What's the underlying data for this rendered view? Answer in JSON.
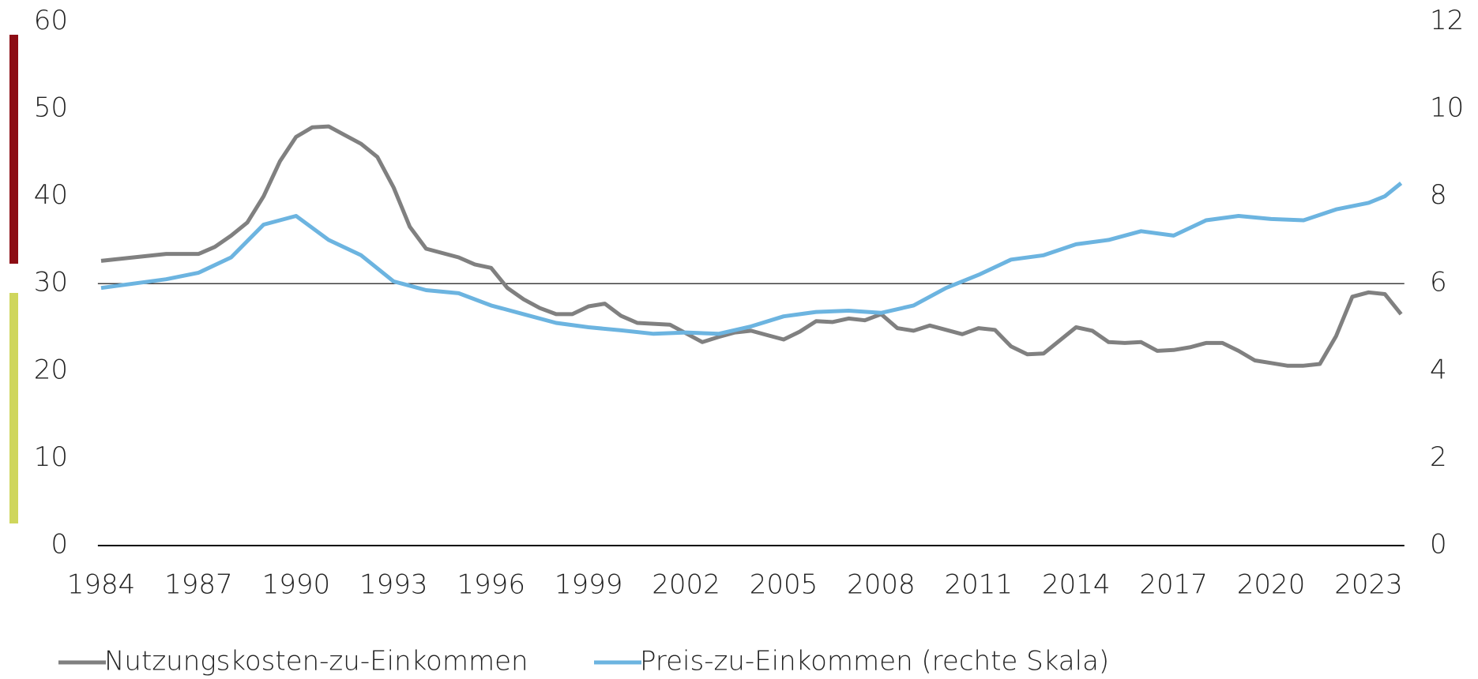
{
  "chart_data": {
    "type": "line",
    "xlim": [
      1983.9,
      2024.1
    ],
    "xticks": [
      1984,
      1987,
      1990,
      1993,
      1996,
      1999,
      2002,
      2005,
      2008,
      2011,
      2014,
      2017,
      2020,
      2023
    ],
    "ylim": [
      0,
      60
    ],
    "yticks": [
      0,
      10,
      20,
      30,
      40,
      50,
      60
    ],
    "y2lim": [
      0,
      12
    ],
    "y2ticks": [
      0,
      2,
      4,
      6,
      8,
      10,
      12
    ],
    "hline": 30,
    "series": [
      {
        "name": "Nutzungskosten-zu-Einkommen",
        "color": "#808080",
        "x": [
          1984,
          1985,
          1986,
          1987,
          1987.5,
          1988,
          1988.5,
          1989,
          1989.5,
          1990,
          1990.5,
          1991,
          1991.5,
          1992,
          1992.5,
          1993,
          1993.5,
          1994,
          1994.5,
          1995,
          1995.5,
          1996,
          1996.5,
          1997,
          1997.5,
          1998,
          1998.5,
          1999,
          1999.5,
          2000,
          2000.5,
          2001,
          2001.5,
          2002,
          2002.5,
          2003,
          2003.5,
          2004,
          2004.5,
          2005,
          2005.5,
          2006,
          2006.5,
          2007,
          2007.5,
          2008,
          2008.5,
          2009,
          2009.5,
          2010,
          2010.5,
          2011,
          2011.5,
          2012,
          2012.5,
          2013,
          2013.5,
          2014,
          2014.5,
          2015,
          2015.5,
          2016,
          2016.5,
          2017,
          2017.5,
          2018,
          2018.5,
          2019,
          2019.5,
          2020,
          2020.5,
          2021,
          2021.5,
          2022,
          2022.5,
          2023,
          2023.5,
          2024
        ],
        "values": [
          32.6,
          33.0,
          33.4,
          33.4,
          34.2,
          35.5,
          37,
          40,
          44,
          46.8,
          47.9,
          48.0,
          47,
          46,
          44.5,
          41,
          36.5,
          34,
          33.5,
          33,
          32.2,
          31.8,
          29.5,
          28.2,
          27.2,
          26.5,
          26.5,
          27.4,
          27.7,
          26.3,
          25.5,
          25.4,
          25.3,
          24.3,
          23.3,
          23.9,
          24.4,
          24.6,
          24.1,
          23.6,
          24.5,
          25.7,
          25.6,
          26.0,
          25.8,
          26.5,
          24.9,
          24.6,
          25.2,
          24.7,
          24.2,
          24.9,
          24.7,
          22.8,
          21.9,
          22.0,
          23.5,
          25.0,
          24.6,
          23.3,
          23.2,
          23.3,
          22.3,
          22.4,
          22.7,
          23.2,
          23.2,
          22.3,
          21.2,
          20.9,
          20.6,
          20.6,
          20.8,
          24,
          28.5,
          29.0,
          28.8,
          26.5
        ]
      },
      {
        "name": "Preis-zu-Einkommen (rechte Skala)",
        "color": "#6cb4e0",
        "axis": "y2",
        "x": [
          1984,
          1985,
          1986,
          1987,
          1988,
          1989,
          1990,
          1991,
          1992,
          1993,
          1994,
          1995,
          1996,
          1997,
          1998,
          1999,
          2000,
          2001,
          2002,
          2003,
          2004,
          2005,
          2006,
          2007,
          2008,
          2009,
          2010,
          2011,
          2012,
          2013,
          2014,
          2015,
          2016,
          2017,
          2018,
          2019,
          2020,
          2021,
          2022,
          2023,
          2023.5,
          2024
        ],
        "values": [
          5.9,
          6.0,
          6.1,
          6.25,
          6.6,
          7.35,
          7.55,
          7.0,
          6.65,
          6.05,
          5.85,
          5.78,
          5.5,
          5.3,
          5.1,
          5.0,
          4.93,
          4.85,
          4.88,
          4.85,
          5.02,
          5.25,
          5.35,
          5.38,
          5.33,
          5.5,
          5.9,
          6.2,
          6.55,
          6.65,
          6.9,
          7.0,
          7.2,
          7.1,
          7.45,
          7.55,
          7.48,
          7.45,
          7.7,
          7.85,
          8.0,
          8.3
        ]
      }
    ]
  }
}
